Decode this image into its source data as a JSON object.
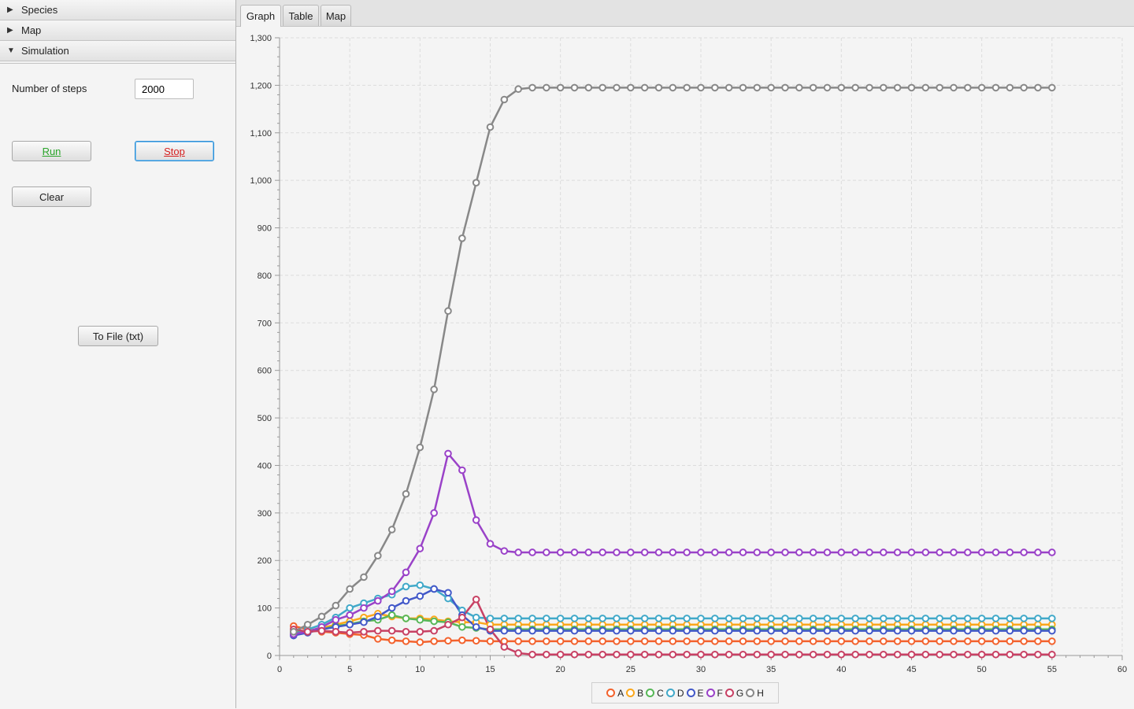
{
  "sidebar": {
    "panels": [
      {
        "label": "Species",
        "expanded": false
      },
      {
        "label": "Map",
        "expanded": false
      },
      {
        "label": "Simulation",
        "expanded": true
      }
    ],
    "simulation": {
      "steps_label": "Number of steps",
      "steps_value": "2000",
      "run_label": "Run",
      "stop_label": "Stop",
      "clear_label": "Clear",
      "to_file_label": "To File (txt)"
    }
  },
  "tabs": [
    {
      "label": "Graph",
      "active": true
    },
    {
      "label": "Table",
      "active": false
    },
    {
      "label": "Map",
      "active": false
    }
  ],
  "chart_data": {
    "type": "line",
    "title": "",
    "xlabel": "",
    "ylabel": "",
    "xlim": [
      0,
      60
    ],
    "ylim": [
      0,
      1300
    ],
    "x_ticks": [
      "0",
      "5",
      "10",
      "15",
      "20",
      "25",
      "30",
      "35",
      "40",
      "45",
      "50",
      "55",
      "60"
    ],
    "y_ticks": [
      "0",
      "100",
      "200",
      "300",
      "400",
      "500",
      "600",
      "700",
      "800",
      "900",
      "1,000",
      "1,100",
      "1,200",
      "1,300"
    ],
    "grid": true,
    "legend_position": "bottom-center",
    "x": [
      1,
      2,
      3,
      4,
      5,
      6,
      7,
      8,
      9,
      10,
      11,
      12,
      13,
      14,
      15,
      16,
      17,
      18,
      19,
      20,
      21,
      22,
      23,
      24,
      25,
      26,
      27,
      28,
      29,
      30,
      31,
      32,
      33,
      34,
      35,
      36,
      37,
      38,
      39,
      40,
      41,
      42,
      43,
      44,
      45,
      46,
      47,
      48,
      49,
      50,
      51,
      52,
      53,
      54,
      55
    ],
    "series": [
      {
        "name": "A",
        "color": "#f3622d",
        "values": [
          62,
          55,
          50,
          48,
          45,
          43,
          35,
          32,
          30,
          28,
          30,
          31,
          32,
          31,
          30,
          30,
          30,
          30,
          30,
          30,
          30,
          30,
          30,
          30,
          30,
          30,
          30,
          30,
          30,
          30,
          30,
          30,
          30,
          30,
          30,
          30,
          30,
          30,
          30,
          30,
          30,
          30,
          30,
          30,
          30,
          30,
          30,
          30,
          30,
          30,
          30,
          30,
          30,
          30,
          30
        ]
      },
      {
        "name": "B",
        "color": "#fba71b",
        "values": [
          50,
          52,
          58,
          65,
          72,
          80,
          88,
          82,
          78,
          78,
          76,
          72,
          70,
          70,
          65,
          65,
          65,
          65,
          65,
          65,
          65,
          65,
          65,
          65,
          65,
          65,
          65,
          65,
          65,
          65,
          65,
          65,
          65,
          65,
          65,
          65,
          65,
          65,
          65,
          65,
          65,
          65,
          65,
          65,
          65,
          65,
          65,
          65,
          65,
          65,
          65,
          65,
          65,
          65,
          65
        ]
      },
      {
        "name": "C",
        "color": "#57b757",
        "values": [
          48,
          52,
          55,
          62,
          66,
          72,
          75,
          85,
          78,
          75,
          72,
          70,
          60,
          58,
          55,
          55,
          55,
          55,
          55,
          55,
          55,
          55,
          55,
          55,
          55,
          55,
          55,
          55,
          55,
          55,
          55,
          55,
          55,
          55,
          55,
          55,
          55,
          55,
          55,
          55,
          55,
          55,
          55,
          55,
          55,
          55,
          55,
          55,
          55,
          55,
          55,
          55,
          55,
          55,
          55
        ]
      },
      {
        "name": "D",
        "color": "#41a9c9",
        "values": [
          45,
          55,
          65,
          80,
          100,
          110,
          120,
          128,
          145,
          148,
          140,
          120,
          95,
          80,
          78,
          78,
          78,
          78,
          78,
          78,
          78,
          78,
          78,
          78,
          78,
          78,
          78,
          78,
          78,
          78,
          78,
          78,
          78,
          78,
          78,
          78,
          78,
          78,
          78,
          78,
          78,
          78,
          78,
          78,
          78,
          78,
          78,
          78,
          78,
          78,
          78,
          78,
          78,
          78,
          78
        ]
      },
      {
        "name": "E",
        "color": "#4258c9",
        "values": [
          42,
          48,
          55,
          60,
          65,
          70,
          82,
          100,
          115,
          125,
          140,
          132,
          85,
          60,
          52,
          52,
          52,
          52,
          52,
          52,
          52,
          52,
          52,
          52,
          52,
          52,
          52,
          52,
          52,
          52,
          52,
          52,
          52,
          52,
          52,
          52,
          52,
          52,
          52,
          52,
          52,
          52,
          52,
          52,
          52,
          52,
          52,
          52,
          52,
          52,
          52,
          52,
          52,
          52,
          52
        ]
      },
      {
        "name": "F",
        "color": "#9a42c8",
        "values": [
          45,
          50,
          60,
          75,
          85,
          100,
          115,
          135,
          175,
          225,
          300,
          425,
          390,
          285,
          235,
          220,
          217,
          217,
          217,
          217,
          217,
          217,
          217,
          217,
          217,
          217,
          217,
          217,
          217,
          217,
          217,
          217,
          217,
          217,
          217,
          217,
          217,
          217,
          217,
          217,
          217,
          217,
          217,
          217,
          217,
          217,
          217,
          217,
          217,
          217,
          217,
          217,
          217,
          217,
          217
        ]
      },
      {
        "name": "G",
        "color": "#c84164",
        "values": [
          55,
          50,
          52,
          50,
          48,
          50,
          52,
          52,
          50,
          50,
          52,
          65,
          80,
          118,
          55,
          18,
          5,
          2,
          2,
          2,
          2,
          2,
          2,
          2,
          2,
          2,
          2,
          2,
          2,
          2,
          2,
          2,
          2,
          2,
          2,
          2,
          2,
          2,
          2,
          2,
          2,
          2,
          2,
          2,
          2,
          2,
          2,
          2,
          2,
          2,
          2,
          2,
          2,
          2,
          2
        ]
      },
      {
        "name": "H",
        "color": "#888888",
        "values": [
          50,
          65,
          82,
          105,
          140,
          165,
          210,
          265,
          340,
          438,
          560,
          725,
          878,
          995,
          1112,
          1170,
          1192,
          1195,
          1195,
          1195,
          1195,
          1195,
          1195,
          1195,
          1195,
          1195,
          1195,
          1195,
          1195,
          1195,
          1195,
          1195,
          1195,
          1195,
          1195,
          1195,
          1195,
          1195,
          1195,
          1195,
          1195,
          1195,
          1195,
          1195,
          1195,
          1195,
          1195,
          1195,
          1195,
          1195,
          1195,
          1195,
          1195,
          1195,
          1195
        ]
      }
    ]
  }
}
